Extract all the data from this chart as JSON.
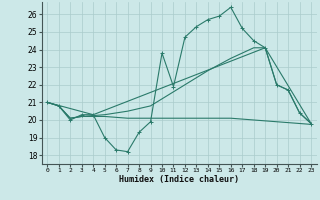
{
  "xlabel": "Humidex (Indice chaleur)",
  "ylabel": "",
  "bg_color": "#cce8e8",
  "grid_color": "#aacccc",
  "line_color": "#2a7a6a",
  "xlim": [
    -0.5,
    23.5
  ],
  "ylim": [
    17.5,
    26.7
  ],
  "yticks": [
    18,
    19,
    20,
    21,
    22,
    23,
    24,
    25,
    26
  ],
  "xticks": [
    0,
    1,
    2,
    3,
    4,
    5,
    6,
    7,
    8,
    9,
    10,
    11,
    12,
    13,
    14,
    15,
    16,
    17,
    18,
    19,
    20,
    21,
    22,
    23
  ],
  "series": [
    {
      "x": [
        0,
        1,
        2,
        3,
        4,
        5,
        6,
        7,
        8,
        9,
        10,
        11,
        12,
        13,
        14,
        15,
        16,
        17,
        18,
        19,
        20,
        21,
        22,
        23
      ],
      "y": [
        21.0,
        20.8,
        20.0,
        20.3,
        20.3,
        19.0,
        18.3,
        18.2,
        19.3,
        19.9,
        23.8,
        21.9,
        24.7,
        25.3,
        25.7,
        25.9,
        26.4,
        25.2,
        24.5,
        24.1,
        22.0,
        21.7,
        20.4,
        19.8
      ],
      "marker": true
    },
    {
      "x": [
        0,
        1,
        2,
        3,
        4,
        5,
        6,
        7,
        8,
        9,
        10,
        11,
        12,
        13,
        14,
        15,
        16,
        17,
        18,
        19,
        20,
        21,
        22,
        23
      ],
      "y": [
        21.0,
        20.8,
        20.1,
        20.2,
        20.2,
        20.2,
        20.15,
        20.1,
        20.1,
        20.1,
        20.1,
        20.1,
        20.1,
        20.1,
        20.1,
        20.1,
        20.1,
        20.05,
        20.0,
        19.95,
        19.9,
        19.85,
        19.8,
        19.75
      ],
      "marker": false
    },
    {
      "x": [
        0,
        1,
        2,
        3,
        4,
        5,
        6,
        7,
        8,
        9,
        10,
        11,
        12,
        13,
        14,
        15,
        16,
        17,
        18,
        19,
        20,
        21,
        22,
        23
      ],
      "y": [
        21.0,
        20.8,
        20.1,
        20.2,
        20.25,
        20.3,
        20.4,
        20.5,
        20.65,
        20.8,
        21.2,
        21.6,
        22.0,
        22.4,
        22.8,
        23.15,
        23.5,
        23.8,
        24.1,
        24.1,
        22.0,
        21.7,
        20.4,
        19.8
      ],
      "marker": false
    },
    {
      "x": [
        0,
        4,
        19,
        23
      ],
      "y": [
        21.0,
        20.3,
        24.1,
        19.8
      ],
      "marker": false
    }
  ]
}
